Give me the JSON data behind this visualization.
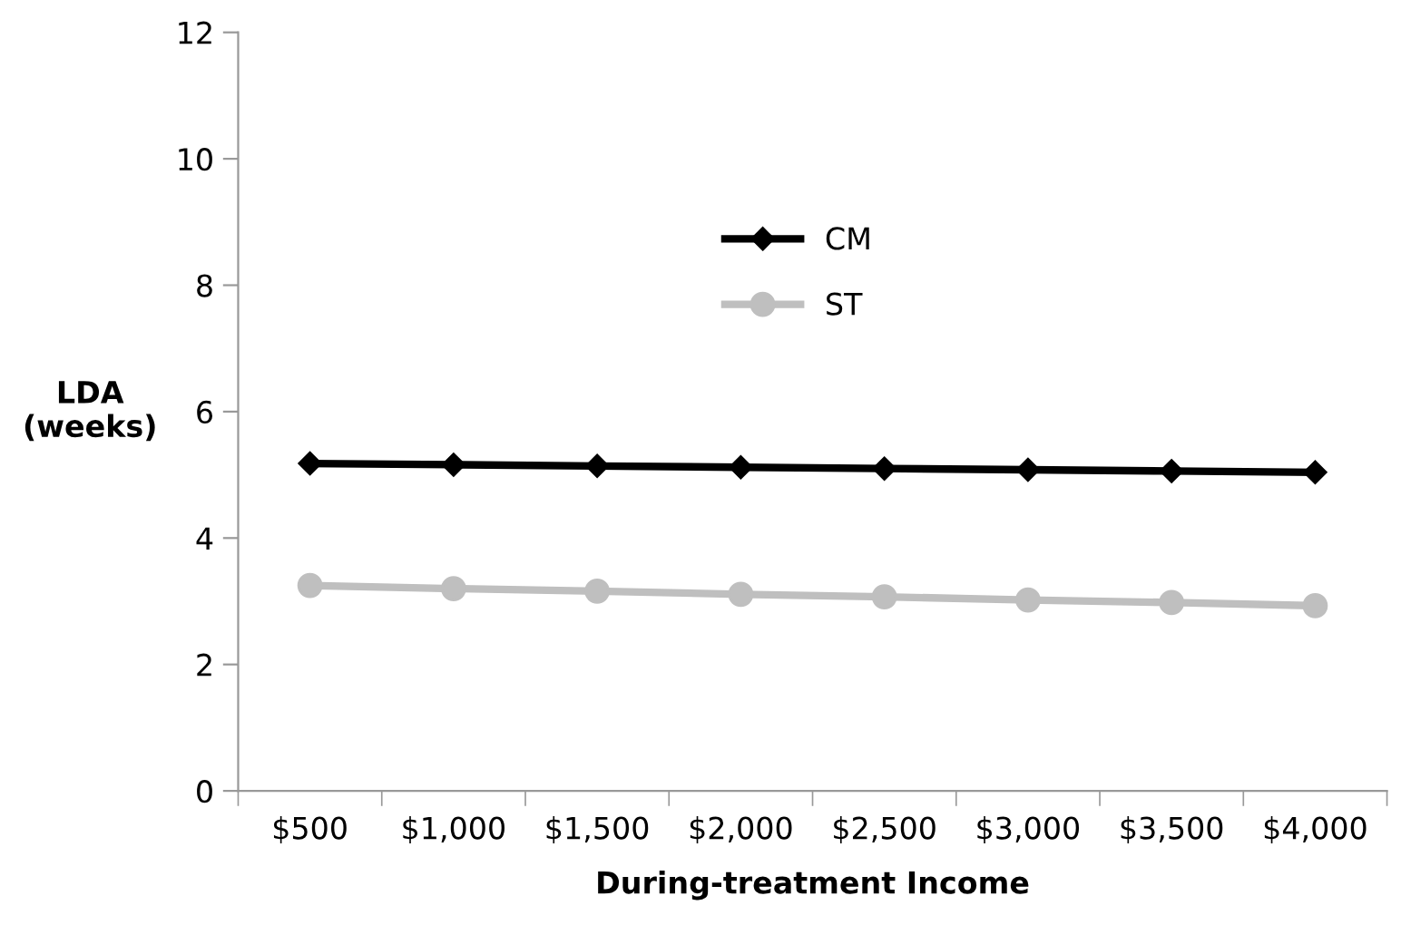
{
  "chart_data": {
    "type": "line",
    "xlabel": "During-treatment Income",
    "ylabel": "LDA\n(weeks)",
    "categories": [
      "$500",
      "$1,000",
      "$1,500",
      "$2,000",
      "$2,500",
      "$3,000",
      "$3,500",
      "$4,000"
    ],
    "series": [
      {
        "name": "CM",
        "color": "#000000",
        "marker": "diamond",
        "values": [
          5.18,
          5.16,
          5.14,
          5.12,
          5.1,
          5.08,
          5.06,
          5.04
        ]
      },
      {
        "name": "ST",
        "color": "#bfbfbf",
        "marker": "circle",
        "values": [
          3.25,
          3.2,
          3.16,
          3.11,
          3.07,
          3.02,
          2.98,
          2.93
        ]
      }
    ],
    "ylim": [
      0,
      12
    ],
    "yticks": [
      0,
      2,
      4,
      6,
      8,
      10,
      12
    ],
    "grid": false,
    "legend": "top",
    "line_style": "solid"
  }
}
